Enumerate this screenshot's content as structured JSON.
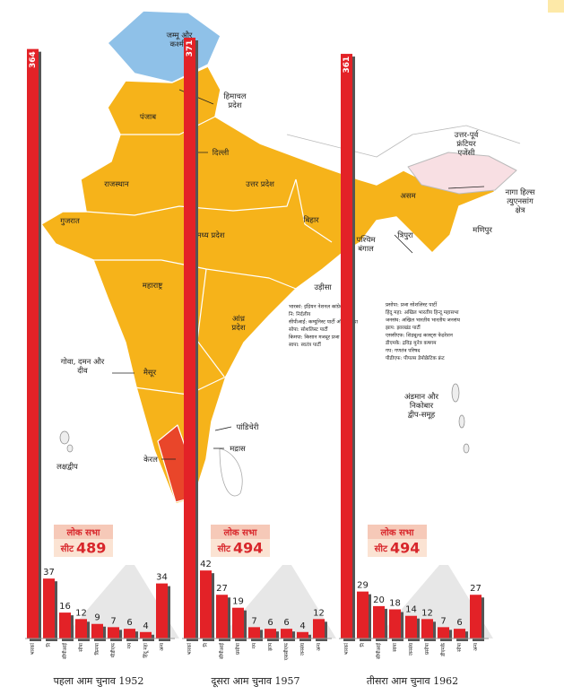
{
  "map": {
    "labels": [
      [
        "जम्मू और",
        "कश्मीर"
      ],
      [
        "हिमाचल",
        "प्रदेश"
      ],
      [
        "पंजाब"
      ],
      [
        "दिल्ली"
      ],
      [
        "राजस्थान"
      ],
      [
        "उत्तर प्रदेश"
      ],
      [
        "उत्तर-पूर्व",
        "फ्रंटियर",
        "एजेंसी"
      ],
      [
        "असम"
      ],
      [
        "नागा हिल्स",
        "त्युएनसांग",
        "क्षेत्र"
      ],
      [
        "मणिपुर"
      ],
      [
        "त्रिपुरा"
      ],
      [
        "बिहार"
      ],
      [
        "पश्चिम",
        "बंगाल"
      ],
      [
        "गुजरात"
      ],
      [
        "मध्य प्रदेश"
      ],
      [
        "उड़ीसा"
      ],
      [
        "महाराष्ट्र"
      ],
      [
        "आंध्र",
        "प्रदेश"
      ],
      [
        "गोवा, दमन और",
        "दीव"
      ],
      [
        "मैसूर"
      ],
      [
        "पांडिचेरी"
      ],
      [
        "मद्रास"
      ],
      [
        "लक्षद्वीप"
      ],
      [
        "केरल"
      ],
      [
        "अंडमान और",
        "निकोबार",
        "द्वीप-समूह"
      ]
    ]
  },
  "legend": {
    "left": [
      "भारकां: इंडियन नेशनल कांग्रेस",
      "नि: निर्दलीय",
      "सीपीआई: कम्युनिस्ट पार्टी ऑफ इंडिया",
      "सोपा: सोशलिस्ट पार्टी",
      "किमपा: किसान मजदूर प्रजा पार्टी",
      "स्वपा: स्वतंत्र पार्टी"
    ],
    "right": [
      "प्रसोपा: प्रजा सोशलिस्ट पार्टी",
      "हिंदू महा: अखिल भारतीय हिन्दू महासभा",
      "जनसंघ: अखिल भारतीय भारतीय जनसंघ",
      "झाप: झारखंड पार्टी",
      "एससीएफ: शिड्यूल्ड कास्ट्स फेडरेशन",
      "डीएमके: द्रविड़ मुनेत्र कषगम",
      "गप: गणतंत्र परिषद",
      "पीडीएफ: पीपल्स डेमोक्रेटिक फ्रंट"
    ]
  },
  "chart_data": [
    {
      "type": "bar",
      "title": "पहला आम चुनाव 1952",
      "color": "#e32227",
      "categories": [
        "भारकां",
        "नि",
        "सीपीआई",
        "सोपा",
        "किमपा",
        "पीडीएफ",
        "गप",
        "हिंदू महा",
        "अन्य"
      ],
      "values": [
        364,
        37,
        16,
        12,
        9,
        7,
        6,
        4,
        34
      ],
      "box_title": "लोक सभा",
      "box_label": "सीट",
      "seats": 489
    },
    {
      "type": "bar",
      "title": "दूसरा आम चुनाव 1957",
      "color": "#e32227",
      "categories": [
        "भारकां",
        "नि",
        "सीपीआई",
        "प्रसोपा",
        "गप",
        "झाप",
        "एससीएफ",
        "जनसंघ",
        "अन्य"
      ],
      "values": [
        371,
        42,
        27,
        19,
        7,
        6,
        6,
        4,
        12
      ],
      "box_title": "लोक सभा",
      "box_label": "सीट",
      "seats": 494
    },
    {
      "type": "bar",
      "title": "तीसरा आम चुनाव 1962",
      "color": "#e32227",
      "categories": [
        "भारकां",
        "नि",
        "सीपीआई",
        "स्वपा",
        "जनसंघ",
        "प्रसोपा",
        "डीएमके",
        "सोपा",
        "अन्य"
      ],
      "values": [
        361,
        29,
        20,
        18,
        14,
        12,
        7,
        6,
        27
      ],
      "box_title": "लोक सभा",
      "box_label": "सीट",
      "seats": 494
    }
  ]
}
